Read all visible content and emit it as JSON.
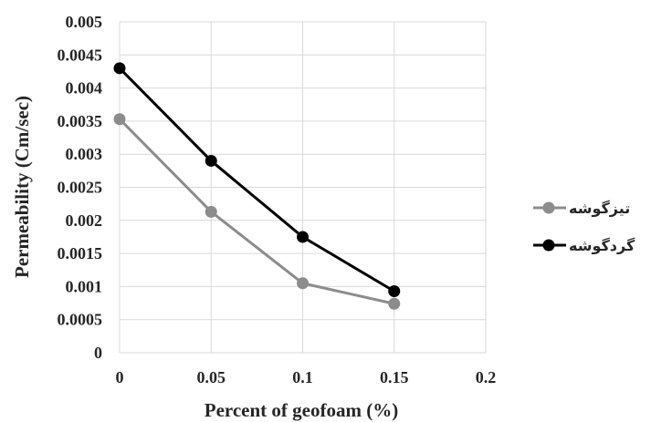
{
  "chart_data": {
    "type": "line",
    "xlabel": "Percent of geofoam (%)",
    "ylabel": "Permeability (Cm/sec)",
    "xlim": [
      0,
      0.2
    ],
    "ylim": [
      0,
      0.005
    ],
    "x_ticks": [
      "0",
      "0.05",
      "0.1",
      "0.15",
      "0.2"
    ],
    "y_ticks": [
      "0",
      "0.0005",
      "0.001",
      "0.0015",
      "0.002",
      "0.0025",
      "0.003",
      "0.0035",
      "0.004",
      "0.0045",
      "0.005"
    ],
    "grid": true,
    "legend_position": "right",
    "series": [
      {
        "name": "تیزگوشه",
        "color": "#8c8c8c",
        "x": [
          0,
          0.05,
          0.1,
          0.15
        ],
        "y": [
          0.00353,
          0.00213,
          0.00105,
          0.00074
        ]
      },
      {
        "name": "گردگوشه",
        "color": "#000000",
        "x": [
          0,
          0.05,
          0.1,
          0.15
        ],
        "y": [
          0.0043,
          0.0029,
          0.00175,
          0.00093
        ]
      }
    ]
  }
}
